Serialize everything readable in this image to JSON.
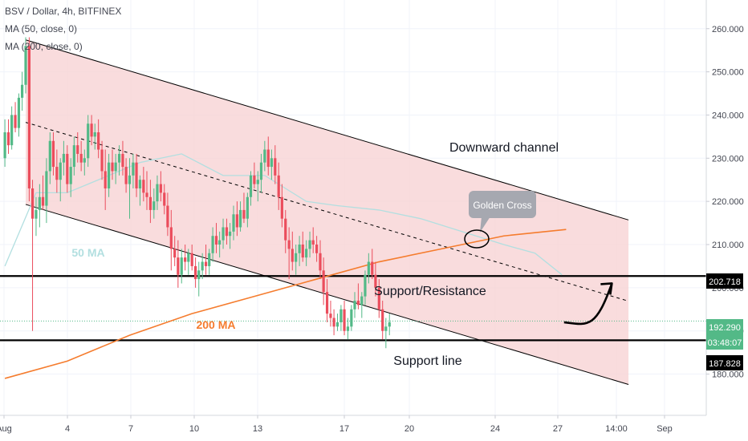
{
  "header": {
    "title": "BSV / Dollar, 4h, BITFINEX",
    "indicators": [
      "MA (50, close, 0)",
      "MA (200, close, 0)"
    ]
  },
  "colors": {
    "up": "#53b987",
    "down": "#eb4d5c",
    "ma50": "#b2dfe0",
    "ma200": "#f57c2e",
    "channel_fill": "#f7d3d5",
    "price_tag": "#53b987",
    "level_tag": "#000000"
  },
  "chart_data": {
    "type": "candlestick",
    "title": "BSV / Dollar, 4h, BITFINEX",
    "x_ticks": [
      "Aug",
      "4",
      "7",
      "10",
      "13",
      "17",
      "20",
      "24",
      "27",
      "14:00",
      "Sep"
    ],
    "y_ticks": [
      "180.000",
      "190.000",
      "200.000",
      "210.000",
      "220.000",
      "230.000",
      "240.000",
      "250.000",
      "260.000"
    ],
    "ylim": [
      175,
      266
    ],
    "current_price": "192.290",
    "countdown": "03:48:07",
    "levels": [
      {
        "label": "Support/Resistance",
        "price": 202.718,
        "tag": "202.718"
      },
      {
        "label": "Support line",
        "price": 187.828,
        "tag": "187.828"
      }
    ],
    "annotations": [
      {
        "text": "Downward channel"
      },
      {
        "text": "Golden Cross"
      },
      {
        "text": "50 MA"
      },
      {
        "text": "200 MA"
      }
    ],
    "channel": {
      "upper": [
        {
          "x": 0.0,
          "y": 257.4
        },
        {
          "x": 29.0,
          "y": 215.7
        }
      ],
      "mid": [
        {
          "x": 0.0,
          "y": 238.3
        },
        {
          "x": 29.0,
          "y": 196.9
        }
      ],
      "lower": [
        {
          "x": 0.0,
          "y": 219.3
        },
        {
          "x": 29.0,
          "y": 177.6
        }
      ]
    },
    "ma50": [
      {
        "x": -1.0,
        "y": 205
      },
      {
        "x": 0.5,
        "y": 222
      },
      {
        "x": 2.0,
        "y": 222
      },
      {
        "x": 3.5,
        "y": 225
      },
      {
        "x": 5.5,
        "y": 229
      },
      {
        "x": 7.5,
        "y": 231
      },
      {
        "x": 9.5,
        "y": 226
      },
      {
        "x": 11.5,
        "y": 226
      },
      {
        "x": 13.5,
        "y": 220
      },
      {
        "x": 15.0,
        "y": 219
      },
      {
        "x": 17.0,
        "y": 218
      },
      {
        "x": 19.0,
        "y": 216
      },
      {
        "x": 21.0,
        "y": 213
      },
      {
        "x": 23.0,
        "y": 210
      },
      {
        "x": 24.5,
        "y": 208
      },
      {
        "x": 25.8,
        "y": 203
      }
    ],
    "ma200": [
      {
        "x": -1.0,
        "y": 179
      },
      {
        "x": 2.0,
        "y": 183
      },
      {
        "x": 5.0,
        "y": 189
      },
      {
        "x": 8.0,
        "y": 194
      },
      {
        "x": 11.0,
        "y": 198
      },
      {
        "x": 14.0,
        "y": 202
      },
      {
        "x": 17.0,
        "y": 206
      },
      {
        "x": 20.0,
        "y": 209
      },
      {
        "x": 23.0,
        "y": 212
      },
      {
        "x": 26.0,
        "y": 213.5
      }
    ],
    "arrow": {
      "from": {
        "x": 25.9,
        "y": 192
      },
      "to": {
        "x": 28.2,
        "y": 201
      }
    },
    "candles": [
      [
        -1.0,
        230,
        239,
        228,
        236
      ],
      [
        -0.83,
        236,
        239,
        231,
        233
      ],
      [
        -0.67,
        233,
        242,
        232,
        240
      ],
      [
        -0.5,
        240,
        243,
        236,
        237
      ],
      [
        -0.33,
        237,
        245,
        235,
        244
      ],
      [
        -0.17,
        244,
        250,
        241,
        247
      ],
      [
        0.0,
        247,
        258,
        245,
        256
      ],
      [
        0.17,
        256,
        258,
        220,
        223
      ],
      [
        0.33,
        223,
        225,
        190,
        216
      ],
      [
        0.5,
        216,
        221,
        212,
        218
      ],
      [
        0.67,
        218,
        224,
        214,
        221
      ],
      [
        0.83,
        221,
        226,
        218,
        219
      ],
      [
        1.0,
        219,
        230,
        215,
        227
      ],
      [
        1.17,
        227,
        236,
        224,
        234
      ],
      [
        1.33,
        234,
        236,
        226,
        228
      ],
      [
        1.5,
        228,
        232,
        222,
        225
      ],
      [
        1.67,
        225,
        230,
        220,
        229
      ],
      [
        1.83,
        229,
        234,
        226,
        231
      ],
      [
        2.0,
        231,
        233,
        222,
        224
      ],
      [
        2.17,
        224,
        230,
        221,
        228
      ],
      [
        2.33,
        228,
        235,
        226,
        233
      ],
      [
        2.5,
        233,
        236,
        229,
        231
      ],
      [
        2.67,
        231,
        234,
        227,
        229
      ],
      [
        2.83,
        229,
        232,
        226,
        230
      ],
      [
        3.0,
        230,
        240,
        228,
        238
      ],
      [
        3.17,
        238,
        240,
        233,
        235
      ],
      [
        3.33,
        235,
        238,
        232,
        236
      ],
      [
        3.5,
        236,
        239,
        230,
        232
      ],
      [
        3.67,
        232,
        234,
        225,
        227
      ],
      [
        3.83,
        227,
        232,
        218,
        223
      ],
      [
        4.0,
        223,
        231,
        221,
        229
      ],
      [
        4.17,
        229,
        232,
        225,
        227
      ],
      [
        4.33,
        227,
        231,
        224,
        229
      ],
      [
        4.5,
        229,
        233,
        226,
        231
      ],
      [
        4.67,
        231,
        234,
        226,
        228
      ],
      [
        4.83,
        228,
        230,
        222,
        224
      ],
      [
        5.0,
        224,
        230,
        216,
        226
      ],
      [
        5.17,
        226,
        231,
        223,
        229
      ],
      [
        5.33,
        229,
        231,
        221,
        223
      ],
      [
        5.5,
        223,
        226,
        219,
        225
      ],
      [
        5.67,
        225,
        228,
        220,
        222
      ],
      [
        5.83,
        222,
        227,
        218,
        221
      ],
      [
        6.0,
        221,
        225,
        215,
        218
      ],
      [
        6.17,
        218,
        223,
        216,
        220
      ],
      [
        6.33,
        220,
        226,
        218,
        224
      ],
      [
        6.5,
        224,
        227,
        220,
        222
      ],
      [
        6.67,
        222,
        224,
        217,
        219
      ],
      [
        6.83,
        219,
        222,
        212,
        214
      ],
      [
        7.0,
        214,
        218,
        204,
        209
      ],
      [
        7.17,
        209,
        212,
        205,
        207
      ],
      [
        7.33,
        207,
        211,
        200,
        203
      ],
      [
        7.5,
        203,
        209,
        201,
        207
      ],
      [
        7.67,
        207,
        210,
        204,
        206
      ],
      [
        7.83,
        206,
        209,
        203,
        208
      ],
      [
        8.0,
        208,
        210,
        204,
        205
      ],
      [
        8.17,
        205,
        207,
        200,
        202
      ],
      [
        8.33,
        202,
        206,
        198,
        204
      ],
      [
        8.5,
        204,
        208,
        202,
        206
      ],
      [
        8.67,
        206,
        210,
        203,
        205
      ],
      [
        8.83,
        205,
        209,
        203,
        208
      ],
      [
        9.0,
        208,
        214,
        206,
        212
      ],
      [
        9.17,
        212,
        215,
        208,
        210
      ],
      [
        9.33,
        210,
        213,
        207,
        211
      ],
      [
        9.5,
        211,
        216,
        209,
        214
      ],
      [
        9.67,
        214,
        216,
        210,
        212
      ],
      [
        9.83,
        212,
        215,
        209,
        213
      ],
      [
        10.0,
        213,
        219,
        211,
        217
      ],
      [
        10.17,
        217,
        220,
        212,
        214
      ],
      [
        10.33,
        214,
        220,
        213,
        218
      ],
      [
        10.5,
        218,
        222,
        215,
        216
      ],
      [
        10.67,
        216,
        222,
        214,
        221
      ],
      [
        10.83,
        221,
        227,
        219,
        226
      ],
      [
        11.0,
        226,
        229,
        223,
        224
      ],
      [
        11.17,
        224,
        227,
        220,
        225
      ],
      [
        11.33,
        225,
        231,
        222,
        229
      ],
      [
        11.5,
        229,
        234,
        227,
        232
      ],
      [
        11.67,
        232,
        235,
        226,
        228
      ],
      [
        11.83,
        228,
        232,
        225,
        230
      ],
      [
        12.0,
        230,
        233,
        224,
        226
      ],
      [
        12.17,
        226,
        229,
        218,
        221
      ],
      [
        12.33,
        221,
        224,
        214,
        216
      ],
      [
        12.5,
        216,
        218,
        208,
        211
      ],
      [
        12.67,
        211,
        214,
        202,
        209
      ],
      [
        12.83,
        209,
        213,
        204,
        206
      ],
      [
        13.0,
        206,
        210,
        203,
        208
      ],
      [
        13.17,
        208,
        212,
        205,
        210
      ],
      [
        13.33,
        210,
        213,
        206,
        207
      ],
      [
        13.5,
        207,
        211,
        205,
        209
      ],
      [
        13.67,
        209,
        213,
        207,
        211
      ],
      [
        13.83,
        211,
        214,
        208,
        210
      ],
      [
        14.0,
        210,
        212,
        206,
        208
      ],
      [
        14.17,
        208,
        211,
        202,
        204
      ],
      [
        14.33,
        204,
        207,
        196,
        199
      ],
      [
        14.5,
        199,
        202,
        192,
        194
      ],
      [
        14.67,
        194,
        197,
        191,
        193
      ],
      [
        14.83,
        193,
        195,
        189,
        191
      ],
      [
        15.0,
        191,
        194,
        190,
        192
      ],
      [
        15.17,
        192,
        196,
        190,
        195
      ],
      [
        15.33,
        195,
        197,
        189,
        190
      ],
      [
        15.5,
        190,
        193,
        188,
        191
      ],
      [
        15.67,
        191,
        196,
        190,
        195
      ],
      [
        15.83,
        195,
        199,
        193,
        197
      ],
      [
        16.0,
        197,
        201,
        195,
        196
      ],
      [
        16.17,
        196,
        199,
        193,
        198
      ],
      [
        16.33,
        198,
        204,
        196,
        203
      ],
      [
        16.5,
        203,
        208,
        201,
        206
      ],
      [
        16.67,
        206,
        209,
        202,
        203
      ],
      [
        16.83,
        203,
        206,
        198,
        200
      ],
      [
        17.0,
        200,
        202,
        193,
        195
      ],
      [
        17.17,
        195,
        197,
        188,
        190
      ],
      [
        17.33,
        190,
        193,
        186,
        191
      ],
      [
        17.5,
        191,
        194,
        189,
        192
      ]
    ]
  }
}
